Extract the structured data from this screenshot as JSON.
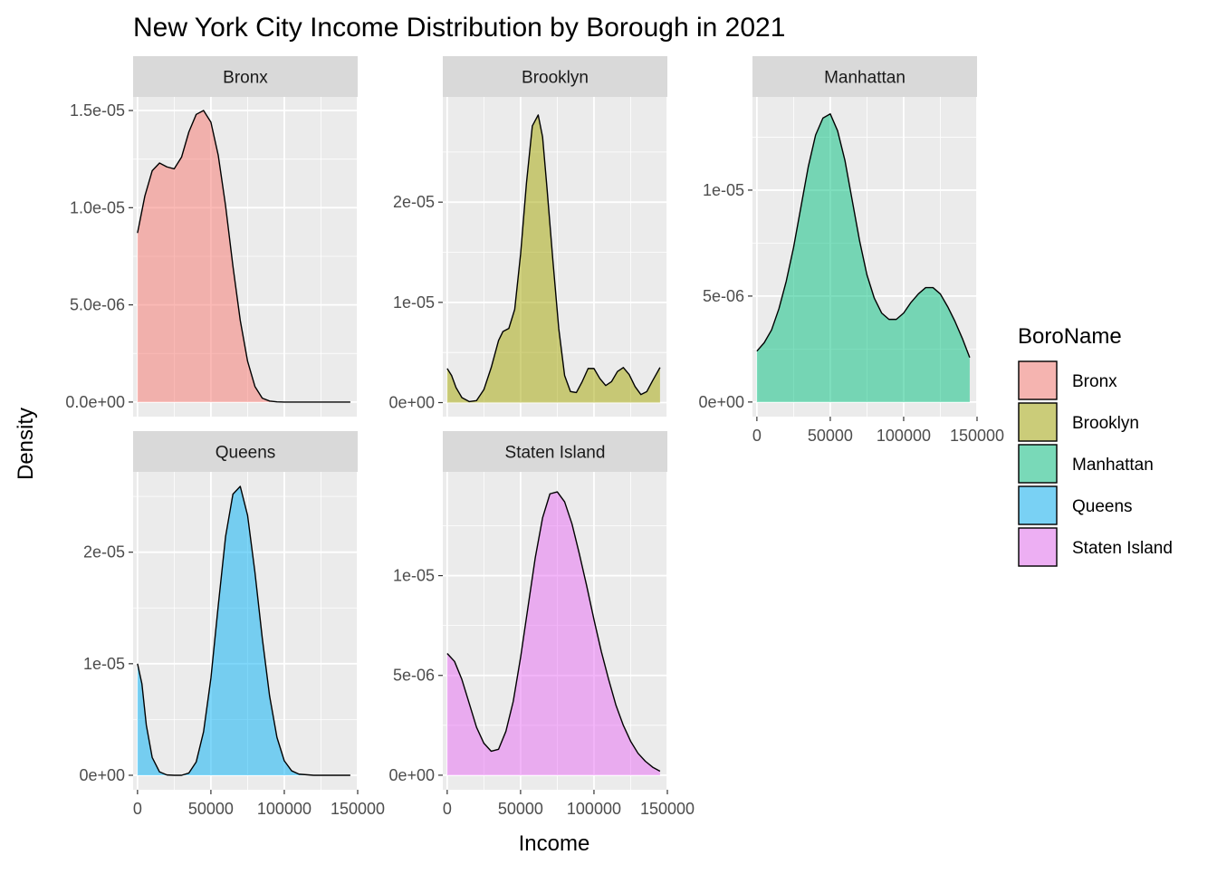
{
  "chart_data": {
    "type": "area",
    "subtype": "faceted density plot",
    "title": "New York City Income Distribution by Borough in 2021",
    "xlabel": "Income",
    "ylabel": "Density",
    "grid": true,
    "legend": {
      "title": "BoroName",
      "position": "right",
      "entries": [
        {
          "label": "Bronx",
          "color": "#F8766D"
        },
        {
          "label": "Brooklyn",
          "color": "#A3A500"
        },
        {
          "label": "Manhattan",
          "color": "#00BF7D"
        },
        {
          "label": "Queens",
          "color": "#00B0F6"
        },
        {
          "label": "Staten Island",
          "color": "#E76BF3"
        }
      ]
    },
    "x_tick_labels": [
      "0",
      "50000",
      "100000",
      "150000"
    ],
    "panels": [
      {
        "name": "Bronx",
        "color": "#F8766D",
        "xlim": [
          -3000,
          150000
        ],
        "ylim": [
          -7.5e-07,
          1.57e-05
        ],
        "x_ticks": [
          0,
          50000,
          100000,
          150000
        ],
        "y_ticks": [
          0,
          5e-06,
          1e-05,
          1.5e-05
        ],
        "y_tick_labels": [
          "0.0e+00",
          "5.0e-06",
          "1.0e-05",
          "1.5e-05"
        ],
        "x": [
          0,
          5000,
          10000,
          15000,
          20000,
          25000,
          30000,
          35000,
          40000,
          45000,
          50000,
          55000,
          60000,
          65000,
          70000,
          75000,
          80000,
          85000,
          90000,
          95000,
          100000,
          110000,
          120000,
          130000,
          145000
        ],
        "density": [
          8.7e-06,
          1.06e-05,
          1.19e-05,
          1.23e-05,
          1.21e-05,
          1.2e-05,
          1.26e-05,
          1.39e-05,
          1.48e-05,
          1.5e-05,
          1.44e-05,
          1.27e-05,
          1.01e-05,
          7e-06,
          4.2e-06,
          2.1e-06,
          8e-07,
          2e-07,
          5e-08,
          1e-08,
          0,
          0,
          0,
          0,
          0
        ]
      },
      {
        "name": "Brooklyn",
        "color": "#A3A500",
        "xlim": [
          -3000,
          150000
        ],
        "ylim": [
          -1.4e-06,
          3.05e-05
        ],
        "x_ticks": [
          0,
          50000,
          100000,
          150000
        ],
        "y_ticks": [
          0,
          1e-05,
          2e-05
        ],
        "y_tick_labels": [
          "0e+00",
          "1e-05",
          "2e-05"
        ],
        "x": [
          0,
          3000,
          6000,
          10000,
          15000,
          20000,
          25000,
          30000,
          35000,
          38000,
          42000,
          46000,
          50000,
          54000,
          58000,
          62000,
          65000,
          68000,
          72000,
          76000,
          80000,
          84000,
          88000,
          92000,
          96000,
          100000,
          104000,
          108000,
          112000,
          116000,
          120000,
          124000,
          128000,
          132000,
          136000,
          140000,
          145000
        ],
        "density": [
          3.4e-06,
          2.7e-06,
          1.5e-06,
          5e-07,
          1e-07,
          2e-07,
          1.3e-06,
          3.5e-06,
          6.2e-06,
          7.1e-06,
          7.4e-06,
          9.3e-06,
          1.48e-05,
          2.19e-05,
          2.76e-05,
          2.87e-05,
          2.65e-05,
          2.14e-05,
          1.42e-05,
          7.4e-06,
          2.7e-06,
          1.1e-06,
          1e-06,
          2.1e-06,
          3.4e-06,
          3.4e-06,
          2.4e-06,
          1.7e-06,
          2.1e-06,
          3.1e-06,
          3.5e-06,
          2.8e-06,
          1.6e-06,
          8e-07,
          1.1e-06,
          2.2e-06,
          3.5e-06
        ]
      },
      {
        "name": "Manhattan",
        "color": "#00BF7D",
        "xlim": [
          -3000,
          150000
        ],
        "ylim": [
          -6.9e-07,
          1.44e-05
        ],
        "x_ticks": [
          0,
          50000,
          100000,
          150000
        ],
        "y_ticks": [
          0,
          5e-06,
          1e-05
        ],
        "y_tick_labels": [
          "0e+00",
          "5e-06",
          "1e-05"
        ],
        "x": [
          0,
          5000,
          10000,
          15000,
          20000,
          25000,
          30000,
          35000,
          40000,
          45000,
          50000,
          55000,
          60000,
          65000,
          70000,
          75000,
          80000,
          85000,
          90000,
          95000,
          100000,
          105000,
          110000,
          115000,
          120000,
          125000,
          130000,
          135000,
          140000,
          145000
        ],
        "density": [
          2.4e-06,
          2.8e-06,
          3.4e-06,
          4.4e-06,
          5.7e-06,
          7.3e-06,
          9.2e-06,
          1.11e-05,
          1.26e-05,
          1.34e-05,
          1.36e-05,
          1.28e-05,
          1.14e-05,
          9.5e-06,
          7.6e-06,
          6e-06,
          4.9e-06,
          4.2e-06,
          3.9e-06,
          3.9e-06,
          4.2e-06,
          4.7e-06,
          5.1e-06,
          5.4e-06,
          5.4e-06,
          5.1e-06,
          4.5e-06,
          3.8e-06,
          3e-06,
          2.1e-06
        ]
      },
      {
        "name": "Queens",
        "color": "#00B0F6",
        "xlim": [
          -3000,
          150000
        ],
        "ylim": [
          -1.3e-06,
          2.72e-05
        ],
        "x_ticks": [
          0,
          50000,
          100000,
          150000
        ],
        "y_ticks": [
          0,
          1e-05,
          2e-05
        ],
        "y_tick_labels": [
          "0e+00",
          "1e-05",
          "2e-05"
        ],
        "x": [
          0,
          3000,
          6000,
          10000,
          15000,
          20000,
          25000,
          30000,
          35000,
          40000,
          45000,
          50000,
          55000,
          60000,
          65000,
          70000,
          75000,
          80000,
          85000,
          90000,
          95000,
          100000,
          105000,
          110000,
          120000,
          130000,
          145000
        ],
        "density": [
          1e-05,
          8.2e-06,
          4.5e-06,
          1.6e-06,
          3e-07,
          3e-08,
          0,
          0,
          2e-07,
          1.2e-06,
          3.9e-06,
          8.7e-06,
          1.52e-05,
          2.14e-05,
          2.52e-05,
          2.59e-05,
          2.33e-05,
          1.82e-05,
          1.23e-05,
          7.1e-06,
          3.4e-06,
          1.3e-06,
          4e-07,
          1e-07,
          0,
          0,
          0
        ]
      },
      {
        "name": "Staten Island",
        "color": "#E76BF3",
        "xlim": [
          -3000,
          150000
        ],
        "ylim": [
          -7.3e-07,
          1.52e-05
        ],
        "x_ticks": [
          0,
          50000,
          100000,
          150000
        ],
        "y_ticks": [
          0,
          5e-06,
          1e-05
        ],
        "y_tick_labels": [
          "0e+00",
          "5e-06",
          "1e-05"
        ],
        "x": [
          0,
          5000,
          10000,
          15000,
          20000,
          25000,
          30000,
          35000,
          40000,
          45000,
          50000,
          55000,
          60000,
          65000,
          70000,
          75000,
          80000,
          85000,
          90000,
          95000,
          100000,
          105000,
          110000,
          115000,
          120000,
          125000,
          130000,
          135000,
          140000,
          145000
        ],
        "density": [
          6.1e-06,
          5.7e-06,
          4.8e-06,
          3.6e-06,
          2.4e-06,
          1.6e-06,
          1.2e-06,
          1.3e-06,
          2.2e-06,
          3.7e-06,
          5.9e-06,
          8.4e-06,
          1.09e-05,
          1.29e-05,
          1.41e-05,
          1.42e-05,
          1.37e-05,
          1.26e-05,
          1.11e-05,
          9.5e-06,
          7.8e-06,
          6.2e-06,
          4.8e-06,
          3.5e-06,
          2.5e-06,
          1.7e-06,
          1.1e-06,
          7e-07,
          4e-07,
          2e-07
        ]
      }
    ]
  }
}
